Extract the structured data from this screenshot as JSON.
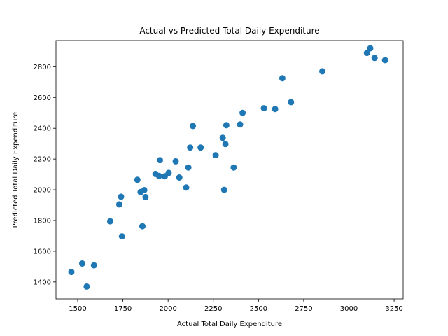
{
  "chart_data": {
    "type": "scatter",
    "title": "Actual vs Predicted Total Daily Expenditure",
    "xlabel": "Actual Total Daily Expenditure",
    "ylabel": "Predicted Total Daily Expenditure",
    "xlim": [
      1380,
      3300
    ],
    "ylim": [
      1290,
      2970
    ],
    "xticks": [
      1500,
      1750,
      2000,
      2250,
      2500,
      2750,
      3000,
      3250
    ],
    "yticks": [
      1400,
      1600,
      1800,
      2000,
      2200,
      2400,
      2600,
      2800
    ],
    "grid": false,
    "marker_color": "#1f77b4",
    "series": [
      {
        "x": [
          1465,
          1525,
          1550,
          1590,
          1680,
          1730,
          1740,
          1745,
          1830,
          1848,
          1858,
          1868,
          1875,
          1930,
          1950,
          1955,
          1982,
          2003,
          2042,
          2062,
          2100,
          2112,
          2122,
          2137,
          2180,
          2263,
          2302,
          2310,
          2317,
          2322,
          2363,
          2398,
          2412,
          2530,
          2592,
          2632,
          2680,
          2853,
          3100,
          3118,
          3142,
          3200
        ],
        "y": [
          1465,
          1520,
          1370,
          1508,
          1795,
          1905,
          1955,
          1697,
          2065,
          1985,
          1763,
          1998,
          1953,
          2103,
          2090,
          2193,
          2088,
          2110,
          2185,
          2080,
          2015,
          2145,
          2275,
          2415,
          2275,
          2225,
          2338,
          2000,
          2297,
          2420,
          2145,
          2425,
          2500,
          2530,
          2525,
          2725,
          2570,
          2770,
          2890,
          2920,
          2857,
          2843
        ]
      }
    ]
  }
}
